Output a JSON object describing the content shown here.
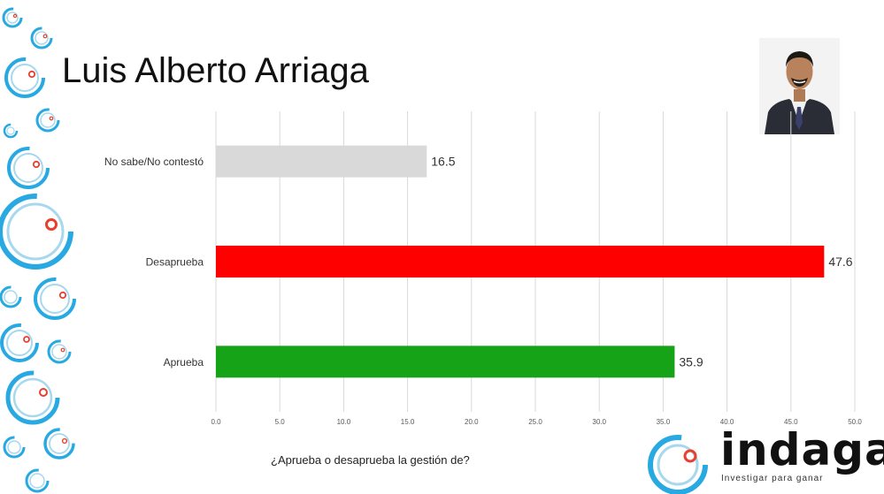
{
  "header": {
    "title": "Luis Alberto Arriaga"
  },
  "logo": {
    "word": "indaga",
    "tagline": "Investigar para ganar"
  },
  "footer": {
    "question": "¿Aprueba o desaprueba la gestión de?"
  },
  "icons": {
    "decoration": "concentric-ring-icon",
    "logo_mark": "concentric-ring-icon",
    "photo": "person-portrait-icon"
  },
  "colors": {
    "approve": "#17a317",
    "disapprove": "#ff0000",
    "no_answer": "#d9d9d9",
    "ring_blue": "#29a9e1",
    "ring_light": "#a7d8ee",
    "ring_red": "#e8402f",
    "grid": "#d9d9d9"
  },
  "chart_data": {
    "type": "bar",
    "orientation": "horizontal",
    "categories": [
      "No sabe/No contestó",
      "Desaprueba",
      "Aprueba"
    ],
    "values": [
      16.5,
      47.6,
      35.9
    ],
    "value_labels": [
      "16.5",
      "47.6",
      "35.9"
    ],
    "bar_colors": [
      "#d9d9d9",
      "#ff0000",
      "#17a317"
    ],
    "xlim": [
      0,
      50
    ],
    "xticks": [
      0,
      5,
      10,
      15,
      20,
      25,
      30,
      35,
      40,
      45,
      50
    ],
    "xtick_labels": [
      "0.0",
      "5.0",
      "10.0",
      "15.0",
      "20.0",
      "25.0",
      "30.0",
      "35.0",
      "40.0",
      "45.0",
      "50.0"
    ],
    "grid": true,
    "legend": "none"
  }
}
